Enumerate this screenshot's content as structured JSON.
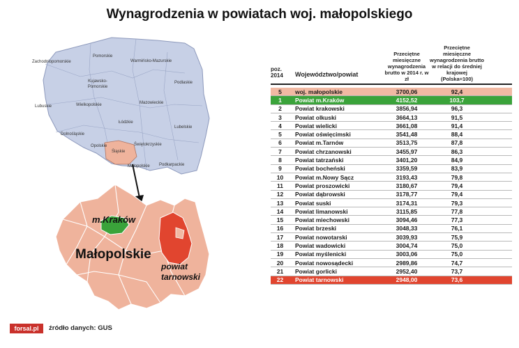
{
  "title": "Wynagrodzenia w powiatach woj. małopolskiego",
  "poland_map": {
    "labels": [
      "Zachodniopomorskie",
      "Pomorskie",
      "Warmińsko-Mazurskie",
      "Kujawsko-Pomorskie",
      "Podlaskie",
      "Lubuskie",
      "Wielkopolskie",
      "Mazowieckie",
      "Łódzkie",
      "Lubelskie",
      "Dolnośląskie",
      "Opolskie",
      "Świętokrzyskie",
      "Śląskie",
      "Małopolskie",
      "Podkarpackie"
    ]
  },
  "malopolska_map": {
    "region_label": "Małopolskie",
    "krakow_label": "m.Kraków",
    "tarnow_label_line1": "powiat",
    "tarnow_label_line2": "tarnowski",
    "colors": {
      "region": "#efb39c",
      "krakow": "#3aa33a",
      "tarnow": "#e1452f"
    }
  },
  "table": {
    "headers": {
      "poz": "poz. 2014",
      "name": "Województwo/powiat",
      "value": "Przeciętne miesięczne wynagrodzenia brutto w 2014 r. w zł",
      "ratio": "Przeciętne miesięczne wynagrodzenia brutto w relacji do średniej krajowej (Polska=100)"
    },
    "rows": [
      {
        "poz": "5",
        "name": "woj. małopolskie",
        "value": "3700,06",
        "ratio": "92,4",
        "highlight": "region"
      },
      {
        "poz": "1",
        "name": "Powiat m.Kraków",
        "value": "4152,52",
        "ratio": "103,7",
        "highlight": "krakow"
      },
      {
        "poz": "2",
        "name": "Powiat krakowski",
        "value": "3856,94",
        "ratio": "96,3"
      },
      {
        "poz": "3",
        "name": "Powiat olkuski",
        "value": "3664,13",
        "ratio": "91,5"
      },
      {
        "poz": "4",
        "name": "Powiat wielicki",
        "value": "3661,08",
        "ratio": "91,4"
      },
      {
        "poz": "5",
        "name": "Powiat oświęcimski",
        "value": "3541,48",
        "ratio": "88,4"
      },
      {
        "poz": "6",
        "name": "Powiat m.Tarnów",
        "value": "3513,75",
        "ratio": "87,8"
      },
      {
        "poz": "7",
        "name": "Powiat chrzanowski",
        "value": "3455,97",
        "ratio": "86,3"
      },
      {
        "poz": "8",
        "name": "Powiat tatrzański",
        "value": "3401,20",
        "ratio": "84,9"
      },
      {
        "poz": "9",
        "name": "Powiat bocheński",
        "value": "3359,59",
        "ratio": "83,9"
      },
      {
        "poz": "10",
        "name": "Powiat m.Nowy Sącz",
        "value": "3193,43",
        "ratio": "79,8"
      },
      {
        "poz": "11",
        "name": "Powiat proszowicki",
        "value": "3180,67",
        "ratio": "79,4"
      },
      {
        "poz": "12",
        "name": "Powiat dąbrowski",
        "value": "3178,77",
        "ratio": "79,4"
      },
      {
        "poz": "13",
        "name": "Powiat suski",
        "value": "3174,31",
        "ratio": "79,3"
      },
      {
        "poz": "14",
        "name": "Powiat limanowski",
        "value": "3115,85",
        "ratio": "77,8"
      },
      {
        "poz": "15",
        "name": "Powiat miechowski",
        "value": "3094,46",
        "ratio": "77,3"
      },
      {
        "poz": "16",
        "name": "Powiat brzeski",
        "value": "3048,33",
        "ratio": "76,1"
      },
      {
        "poz": "17",
        "name": "Powiat nowotarski",
        "value": "3039,93",
        "ratio": "75,9"
      },
      {
        "poz": "18",
        "name": "Powiat wadowicki",
        "value": "3004,74",
        "ratio": "75,0"
      },
      {
        "poz": "19",
        "name": "Powiat myślenicki",
        "value": "3003,06",
        "ratio": "75,0"
      },
      {
        "poz": "20",
        "name": "Powiat nowosądecki",
        "value": "2989,86",
        "ratio": "74,7"
      },
      {
        "poz": "21",
        "name": "Powiat gorlicki",
        "value": "2952,40",
        "ratio": "73,7"
      },
      {
        "poz": "22",
        "name": "Powiat tarnowski",
        "value": "2948,00",
        "ratio": "73,6",
        "highlight": "tarnow"
      }
    ]
  },
  "footer": {
    "logo": "forsal.pl",
    "source": "źródło danych: GUS"
  }
}
